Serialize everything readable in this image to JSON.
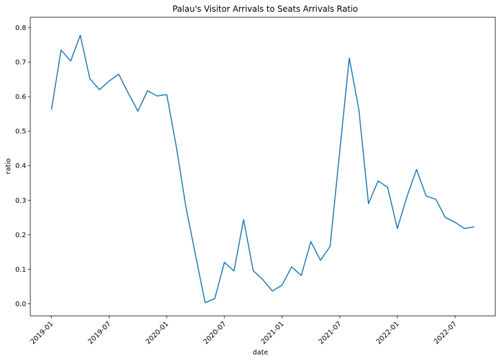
{
  "chart_data": {
    "type": "line",
    "title": "Palau's Visitor Arrivals to Seats Arrivals Ratio",
    "xlabel": "date",
    "ylabel": "ratio",
    "ylim": [
      -0.035,
      0.83
    ],
    "grid": false,
    "x_ticks": [
      "2019-01",
      "2019-07",
      "2020-01",
      "2020-07",
      "2021-01",
      "2021-07",
      "2022-01",
      "2022-07"
    ],
    "y_ticks": [
      "0.0",
      "0.1",
      "0.2",
      "0.3",
      "0.4",
      "0.5",
      "0.6",
      "0.7",
      "0.8"
    ],
    "series": [
      {
        "color": "#1f77b4",
        "x": [
          "2019-01",
          "2019-02",
          "2019-03",
          "2019-04",
          "2019-05",
          "2019-06",
          "2019-07",
          "2019-08",
          "2019-09",
          "2019-10",
          "2019-11",
          "2019-12",
          "2020-01",
          "2020-02",
          "2020-03",
          "2020-04",
          "2020-05",
          "2020-06",
          "2020-07",
          "2020-08",
          "2020-09",
          "2020-10",
          "2020-11",
          "2020-12",
          "2021-01",
          "2021-02",
          "2021-03",
          "2021-04",
          "2021-05",
          "2021-06",
          "2021-07",
          "2021-08",
          "2021-09",
          "2021-10",
          "2021-11",
          "2021-12",
          "2022-01",
          "2022-02",
          "2022-03",
          "2022-04",
          "2022-05",
          "2022-06",
          "2022-07",
          "2022-08",
          "2022-09"
        ],
        "values": [
          0.562,
          0.735,
          0.703,
          0.778,
          0.652,
          0.62,
          0.645,
          0.665,
          0.61,
          0.558,
          0.617,
          0.602,
          0.606,
          0.455,
          0.28,
          0.14,
          0.003,
          0.015,
          0.12,
          0.095,
          0.244,
          0.096,
          0.07,
          0.037,
          0.054,
          0.107,
          0.082,
          0.18,
          0.126,
          0.166,
          0.44,
          0.712,
          0.562,
          0.29,
          0.356,
          0.337,
          0.218,
          0.31,
          0.389,
          0.312,
          0.303,
          0.25,
          0.236,
          0.218,
          0.223
        ]
      }
    ]
  }
}
